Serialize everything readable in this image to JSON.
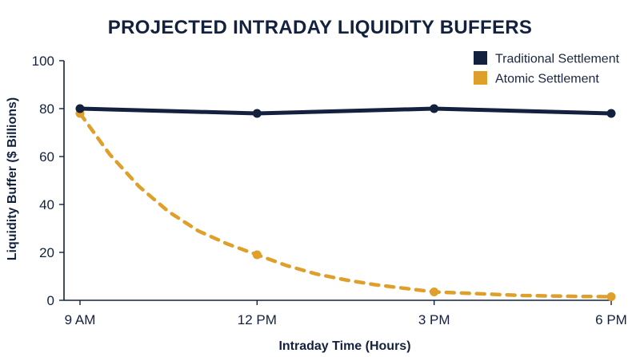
{
  "chart_data": {
    "type": "line",
    "title": "PROJECTED INTRADAY LIQUIDITY BUFFERS",
    "xlabel": "Intraday Time (Hours)",
    "ylabel": "Liquidity Buffer ($ Billions)",
    "x": [
      0,
      3,
      6,
      9
    ],
    "x_ticks": [
      {
        "value": 0,
        "label": "9 AM"
      },
      {
        "value": 3,
        "label": "12 PM"
      },
      {
        "value": 6,
        "label": "3 PM"
      },
      {
        "value": 9,
        "label": "6 PM"
      }
    ],
    "xlim": [
      0,
      9
    ],
    "ylim": [
      0,
      100
    ],
    "y_ticks": [
      0,
      20,
      40,
      60,
      80,
      100
    ],
    "grid": false,
    "legend_position": "top-right",
    "series": [
      {
        "name": "Traditional Settlement",
        "color": "#13213f",
        "style": "solid",
        "values": [
          80,
          78,
          80,
          78
        ]
      },
      {
        "name": "Atomic Settlement",
        "color": "#df9f2b",
        "style": "dashed",
        "values": [
          78,
          19,
          3.5,
          1.5
        ],
        "curve_values": [
          [
            0,
            78
          ],
          [
            0.5,
            61
          ],
          [
            1,
            47.5
          ],
          [
            1.5,
            37
          ],
          [
            2,
            29
          ],
          [
            2.5,
            23.5
          ],
          [
            3,
            19
          ],
          [
            3.5,
            14.5
          ],
          [
            4,
            11
          ],
          [
            4.5,
            8.5
          ],
          [
            5,
            6.5
          ],
          [
            5.5,
            5
          ],
          [
            6,
            3.5
          ],
          [
            6.5,
            3
          ],
          [
            7,
            2.5
          ],
          [
            7.5,
            2
          ],
          [
            8,
            1.8
          ],
          [
            8.5,
            1.6
          ],
          [
            9,
            1.5
          ]
        ]
      }
    ]
  }
}
